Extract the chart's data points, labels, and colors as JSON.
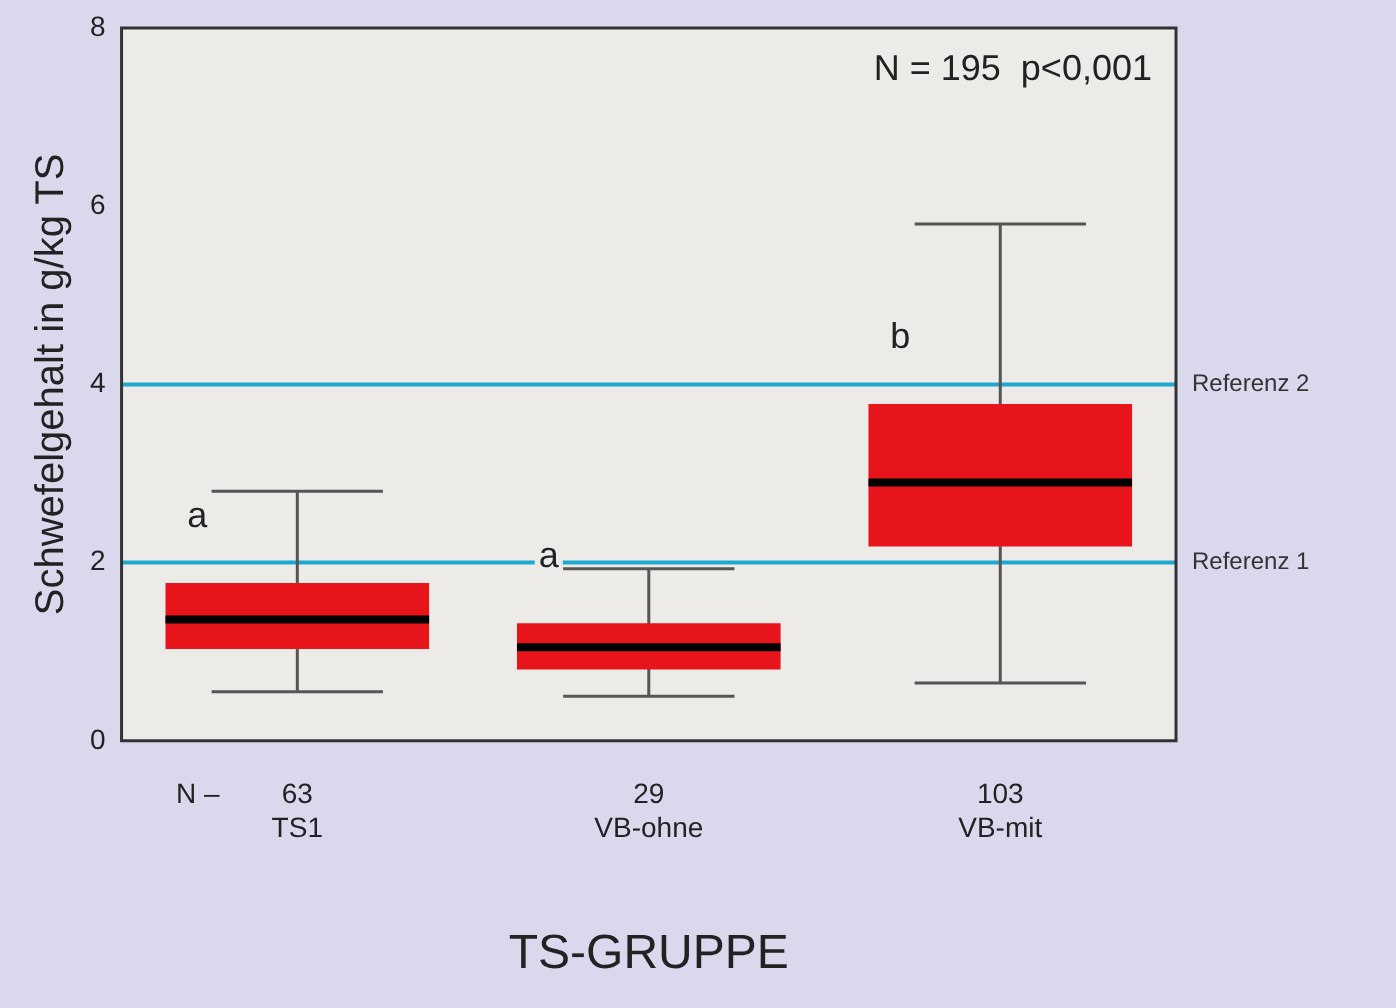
{
  "chart_data": {
    "type": "box",
    "xlabel": "TS-GRUPPE",
    "ylabel": "Schwefelgehalt in g/kg TS",
    "categories": [
      "TS1",
      "VB-ohne",
      "VB-mit"
    ],
    "series": [
      {
        "color": "#e8141c",
        "boxes": [
          {
            "low": 0.55,
            "q1": 1.03,
            "median": 1.36,
            "q3": 1.77,
            "high": 2.8
          },
          {
            "low": 0.5,
            "q1": 0.8,
            "median": 1.05,
            "q3": 1.32,
            "high": 1.93
          },
          {
            "low": 0.65,
            "q1": 2.18,
            "median": 2.9,
            "q3": 3.78,
            "high": 5.8
          }
        ]
      }
    ],
    "ylim": [
      0,
      8
    ],
    "yticks": [
      0,
      2,
      4,
      6,
      8
    ],
    "grid": false,
    "legend": false,
    "ref_lines": [
      {
        "axis": "y",
        "value": 2,
        "label": "Referenz 1",
        "color": "#1ea8d0"
      },
      {
        "axis": "y",
        "value": 4,
        "label": "Referenz 2",
        "color": "#1ea8d0"
      }
    ],
    "annotations": [
      "N = 195  p<0,001",
      "N –",
      "63",
      "29",
      "103",
      "a",
      "a",
      "b"
    ]
  }
}
